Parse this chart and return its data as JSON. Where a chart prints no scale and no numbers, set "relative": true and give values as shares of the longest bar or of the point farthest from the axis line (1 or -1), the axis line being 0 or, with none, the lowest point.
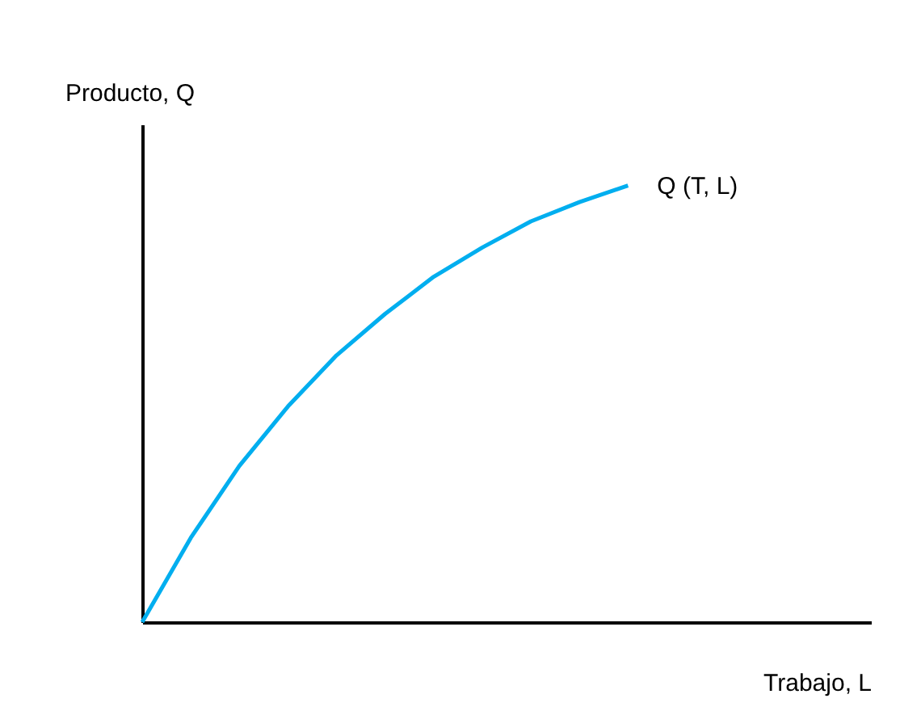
{
  "chart_data": {
    "type": "line",
    "relative": true,
    "xlabel": "Trabajo, L",
    "ylabel": "Producto, Q",
    "categories": [
      null,
      null,
      null,
      null,
      null,
      null,
      null,
      null,
      null,
      null,
      null,
      null,
      null,
      null,
      null,
      null
    ],
    "series": [
      {
        "name": "Q (T, L)",
        "color": "#00aeef",
        "values": [
          0,
          0.193,
          0.358,
          0.494,
          0.611,
          0.706,
          0.791,
          0.858,
          0.918,
          0.962,
          1.0,
          null,
          null,
          null,
          null,
          null
        ]
      }
    ],
    "grid": false,
    "marker": "none",
    "line_style": "solid",
    "tick_labels": false
  }
}
